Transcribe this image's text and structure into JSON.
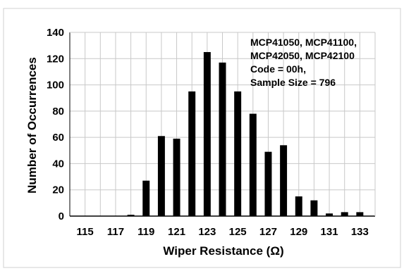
{
  "chart_data": {
    "type": "bar",
    "xlabel": "Wiper Resistance (Ω)",
    "ylabel": "Number of Occurrences",
    "ylim": [
      0,
      140
    ],
    "xlim": [
      114,
      134
    ],
    "grid": true,
    "x_ticks": [
      "115",
      "117",
      "119",
      "121",
      "123",
      "125",
      "127",
      "129",
      "131",
      "133"
    ],
    "y_ticks": [
      "0",
      "20",
      "40",
      "60",
      "80",
      "100",
      "120",
      "140"
    ],
    "x": [
      115,
      116,
      117,
      118,
      119,
      120,
      121,
      122,
      123,
      124,
      125,
      126,
      127,
      128,
      129,
      130,
      131,
      132,
      133
    ],
    "values": [
      0,
      0,
      0,
      1,
      27,
      61,
      59,
      95,
      125,
      117,
      95,
      78,
      49,
      54,
      15,
      12,
      2,
      3,
      3
    ],
    "annotation": [
      "MCP41050, MCP41100,",
      "MCP42050, MCP42100",
      "Code = 00h,",
      "Sample Size = 796"
    ],
    "colors": {
      "bar": "#000000",
      "grid": "#c8c8c8",
      "frame": "#d0d0d0"
    }
  }
}
